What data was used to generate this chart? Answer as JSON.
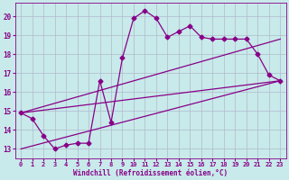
{
  "xlabel": "Windchill (Refroidissement éolien,°C)",
  "bg_color": "#c8eaea",
  "grid_color": "#b0b8cc",
  "line_color": "#880088",
  "xlim": [
    -0.5,
    23.5
  ],
  "ylim": [
    12.5,
    20.7
  ],
  "yticks": [
    13,
    14,
    15,
    16,
    17,
    18,
    19,
    20
  ],
  "xticks": [
    0,
    1,
    2,
    3,
    4,
    5,
    6,
    7,
    8,
    9,
    10,
    11,
    12,
    13,
    14,
    15,
    16,
    17,
    18,
    19,
    20,
    21,
    22,
    23
  ],
  "line1_x": [
    0,
    1,
    2,
    3,
    4,
    5,
    6,
    7,
    8,
    9,
    10,
    11,
    12,
    13,
    14,
    15,
    16,
    17,
    18,
    19,
    20,
    21,
    22,
    23
  ],
  "line1_y": [
    14.9,
    14.6,
    13.7,
    13.0,
    13.2,
    13.3,
    13.3,
    16.6,
    14.4,
    17.8,
    19.9,
    20.3,
    19.9,
    18.9,
    19.2,
    19.5,
    18.9,
    18.8,
    18.8,
    18.8,
    18.8,
    18.0,
    16.9,
    16.6
  ],
  "line2_x": [
    0,
    23
  ],
  "line2_y": [
    14.9,
    18.8
  ],
  "line3_x": [
    0,
    23
  ],
  "line3_y": [
    13.0,
    16.6
  ],
  "line4_x": [
    0,
    23
  ],
  "line4_y": [
    14.9,
    16.6
  ],
  "marker": "D",
  "marker_size": 2.5,
  "line_width": 0.9
}
